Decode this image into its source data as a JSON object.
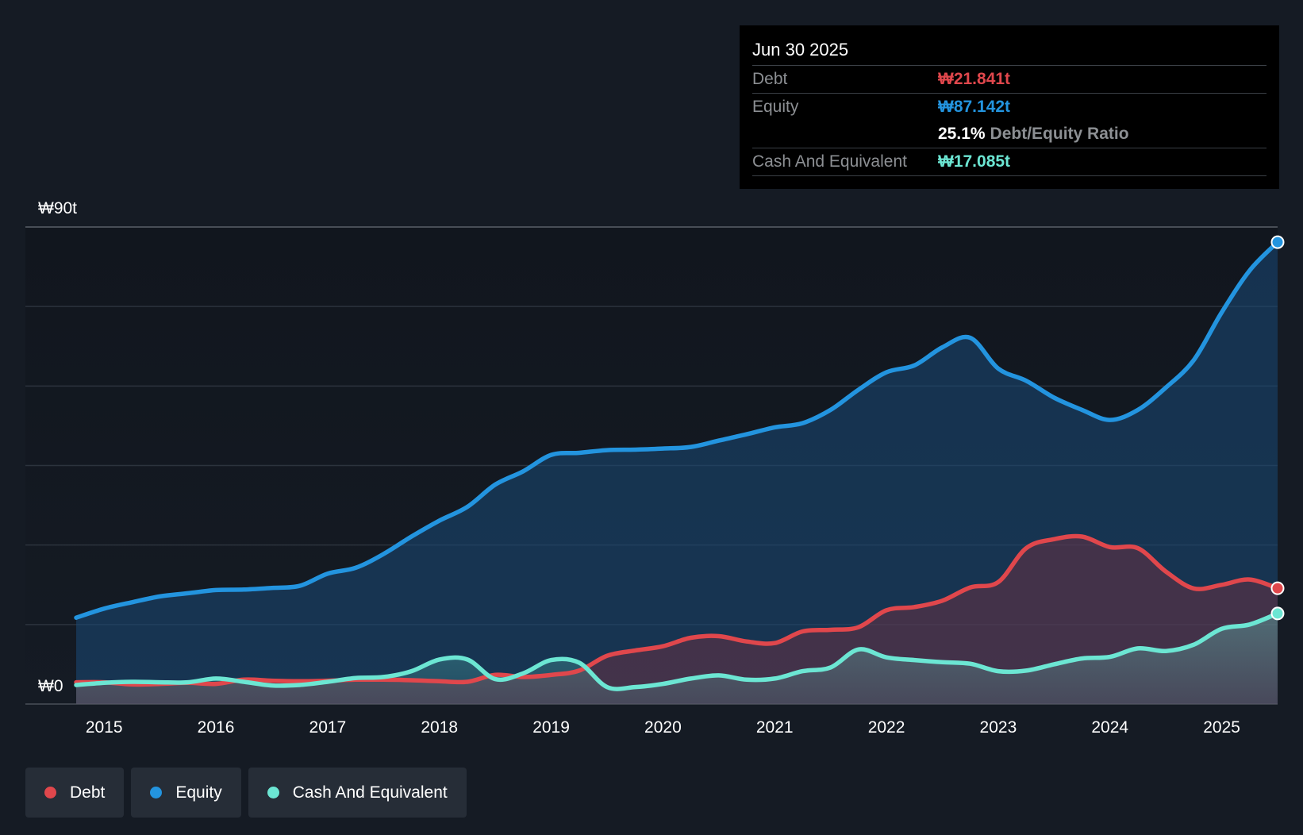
{
  "tooltip": {
    "date": "Jun 30 2025",
    "debt_label": "Debt",
    "debt_value": "₩21.841t",
    "equity_label": "Equity",
    "equity_value": "₩87.142t",
    "ratio_value": "25.1%",
    "ratio_label": "Debt/Equity Ratio",
    "cash_label": "Cash And Equivalent",
    "cash_value": "₩17.085t"
  },
  "legend": {
    "debt": "Debt",
    "equity": "Equity",
    "cash": "Cash And Equivalent"
  },
  "colors": {
    "debt": "#e0474c",
    "equity": "#2394df",
    "cash": "#6ce6d3",
    "background": "#151b24"
  },
  "chart_data": {
    "type": "area",
    "title": "",
    "xlabel": "",
    "ylabel": "",
    "ylim": [
      0,
      90
    ],
    "y_unit": "₩t",
    "y_tick_labels": [
      "₩0",
      "₩90t"
    ],
    "x_tick_labels": [
      "2015",
      "2016",
      "2017",
      "2018",
      "2019",
      "2020",
      "2021",
      "2022",
      "2023",
      "2024",
      "2025"
    ],
    "x_range": [
      2014.75,
      2025.5
    ],
    "series": [
      {
        "name": "Equity",
        "color": "#2394df",
        "points": [
          [
            2014.75,
            16.3
          ],
          [
            2015.0,
            18.0
          ],
          [
            2015.25,
            19.2
          ],
          [
            2015.5,
            20.3
          ],
          [
            2015.75,
            20.9
          ],
          [
            2016.0,
            21.5
          ],
          [
            2016.25,
            21.6
          ],
          [
            2016.5,
            21.9
          ],
          [
            2016.75,
            22.3
          ],
          [
            2017.0,
            24.6
          ],
          [
            2017.25,
            25.7
          ],
          [
            2017.5,
            28.3
          ],
          [
            2017.75,
            31.6
          ],
          [
            2018.0,
            34.6
          ],
          [
            2018.25,
            37.2
          ],
          [
            2018.5,
            41.4
          ],
          [
            2018.75,
            43.9
          ],
          [
            2019.0,
            47.0
          ],
          [
            2019.25,
            47.4
          ],
          [
            2019.5,
            47.9
          ],
          [
            2019.75,
            48.0
          ],
          [
            2020.0,
            48.2
          ],
          [
            2020.25,
            48.5
          ],
          [
            2020.5,
            49.7
          ],
          [
            2020.75,
            50.9
          ],
          [
            2021.0,
            52.2
          ],
          [
            2021.25,
            53.0
          ],
          [
            2021.5,
            55.5
          ],
          [
            2021.75,
            59.3
          ],
          [
            2022.0,
            62.6
          ],
          [
            2022.25,
            63.9
          ],
          [
            2022.5,
            67.3
          ],
          [
            2022.75,
            69.1
          ],
          [
            2023.0,
            63.3
          ],
          [
            2023.25,
            61.0
          ],
          [
            2023.5,
            57.8
          ],
          [
            2023.75,
            55.5
          ],
          [
            2024.0,
            53.6
          ],
          [
            2024.25,
            55.5
          ],
          [
            2024.5,
            59.7
          ],
          [
            2024.75,
            64.9
          ],
          [
            2025.0,
            73.9
          ],
          [
            2025.25,
            81.8
          ],
          [
            2025.5,
            87.142
          ]
        ]
      },
      {
        "name": "Debt",
        "color": "#e0474c",
        "points": [
          [
            2014.75,
            4.1
          ],
          [
            2015.0,
            4.1
          ],
          [
            2015.25,
            3.7
          ],
          [
            2015.5,
            3.8
          ],
          [
            2015.75,
            4.0
          ],
          [
            2016.0,
            3.8
          ],
          [
            2016.25,
            4.6
          ],
          [
            2016.5,
            4.4
          ],
          [
            2016.75,
            4.3
          ],
          [
            2017.0,
            4.4
          ],
          [
            2017.25,
            4.6
          ],
          [
            2017.5,
            4.6
          ],
          [
            2017.75,
            4.5
          ],
          [
            2018.0,
            4.3
          ],
          [
            2018.25,
            4.2
          ],
          [
            2018.5,
            5.5
          ],
          [
            2018.75,
            5.1
          ],
          [
            2019.0,
            5.5
          ],
          [
            2019.25,
            6.3
          ],
          [
            2019.5,
            9.1
          ],
          [
            2019.75,
            10.1
          ],
          [
            2020.0,
            10.9
          ],
          [
            2020.25,
            12.5
          ],
          [
            2020.5,
            12.8
          ],
          [
            2020.75,
            11.8
          ],
          [
            2021.0,
            11.5
          ],
          [
            2021.25,
            13.7
          ],
          [
            2021.5,
            14.0
          ],
          [
            2021.75,
            14.5
          ],
          [
            2022.0,
            17.7
          ],
          [
            2022.25,
            18.3
          ],
          [
            2022.5,
            19.5
          ],
          [
            2022.75,
            22.0
          ],
          [
            2023.0,
            23.0
          ],
          [
            2023.25,
            29.4
          ],
          [
            2023.5,
            31.1
          ],
          [
            2023.75,
            31.6
          ],
          [
            2024.0,
            29.6
          ],
          [
            2024.25,
            29.4
          ],
          [
            2024.5,
            25.0
          ],
          [
            2024.75,
            21.8
          ],
          [
            2025.0,
            22.5
          ],
          [
            2025.25,
            23.5
          ],
          [
            2025.5,
            21.841
          ]
        ]
      },
      {
        "name": "Cash And Equivalent",
        "color": "#6ce6d3",
        "points": [
          [
            2014.75,
            3.6
          ],
          [
            2015.0,
            4.0
          ],
          [
            2015.25,
            4.2
          ],
          [
            2015.5,
            4.1
          ],
          [
            2015.75,
            4.1
          ],
          [
            2016.0,
            4.8
          ],
          [
            2016.25,
            4.2
          ],
          [
            2016.5,
            3.5
          ],
          [
            2016.75,
            3.6
          ],
          [
            2017.0,
            4.2
          ],
          [
            2017.25,
            4.9
          ],
          [
            2017.5,
            5.1
          ],
          [
            2017.75,
            6.2
          ],
          [
            2018.0,
            8.4
          ],
          [
            2018.25,
            8.4
          ],
          [
            2018.5,
            4.7
          ],
          [
            2018.75,
            5.8
          ],
          [
            2019.0,
            8.3
          ],
          [
            2019.25,
            7.8
          ],
          [
            2019.5,
            3.2
          ],
          [
            2019.75,
            3.2
          ],
          [
            2020.0,
            3.8
          ],
          [
            2020.25,
            4.8
          ],
          [
            2020.5,
            5.4
          ],
          [
            2020.75,
            4.6
          ],
          [
            2021.0,
            4.8
          ],
          [
            2021.25,
            6.2
          ],
          [
            2021.5,
            6.9
          ],
          [
            2021.75,
            10.3
          ],
          [
            2022.0,
            8.8
          ],
          [
            2022.25,
            8.3
          ],
          [
            2022.5,
            7.9
          ],
          [
            2022.75,
            7.6
          ],
          [
            2023.0,
            6.2
          ],
          [
            2023.25,
            6.3
          ],
          [
            2023.5,
            7.5
          ],
          [
            2023.75,
            8.6
          ],
          [
            2024.0,
            8.9
          ],
          [
            2024.25,
            10.5
          ],
          [
            2024.5,
            10.0
          ],
          [
            2024.75,
            11.2
          ],
          [
            2025.0,
            14.2
          ],
          [
            2025.25,
            15.0
          ],
          [
            2025.5,
            17.085
          ]
        ]
      }
    ],
    "legend_position": "bottom-left",
    "grid": true
  }
}
